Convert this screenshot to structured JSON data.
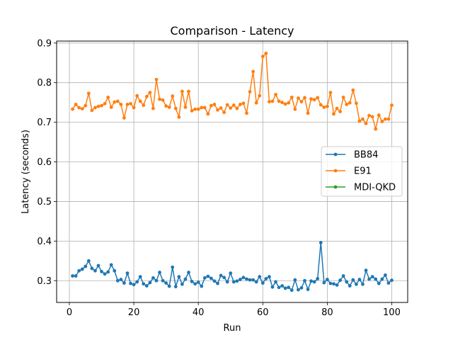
{
  "chart_data": {
    "type": "line",
    "title": "Comparison - Latency",
    "xlabel": "Run",
    "ylabel": "Latency (seconds)",
    "xlim": [
      -3.95,
      104.95
    ],
    "ylim": [
      0.245,
      0.905
    ],
    "xticks": [
      0,
      20,
      40,
      60,
      80,
      100
    ],
    "yticks": [
      0.3,
      0.4,
      0.5,
      0.6,
      0.7,
      0.8,
      0.9
    ],
    "grid": true,
    "legend_position": "center-right",
    "series": [
      {
        "name": "BB84",
        "color": "#1f77b4",
        "x": [
          1,
          2,
          3,
          4,
          5,
          6,
          7,
          8,
          9,
          10,
          11,
          12,
          13,
          14,
          15,
          16,
          17,
          18,
          19,
          20,
          21,
          22,
          23,
          24,
          25,
          26,
          27,
          28,
          29,
          30,
          31,
          32,
          33,
          34,
          35,
          36,
          37,
          38,
          39,
          40,
          41,
          42,
          43,
          44,
          45,
          46,
          47,
          48,
          49,
          50,
          51,
          52,
          53,
          54,
          55,
          56,
          57,
          58,
          59,
          60,
          61,
          62,
          63,
          64,
          65,
          66,
          67,
          68,
          69,
          70,
          71,
          72,
          73,
          74,
          75,
          76,
          77,
          78,
          79,
          80,
          81,
          82,
          83,
          84,
          85,
          86,
          87,
          88,
          89,
          90,
          91,
          92,
          93,
          94,
          95,
          96,
          97,
          98,
          99,
          100
        ],
        "y": [
          0.312,
          0.312,
          0.325,
          0.329,
          0.336,
          0.35,
          0.331,
          0.325,
          0.338,
          0.323,
          0.317,
          0.322,
          0.34,
          0.325,
          0.3,
          0.303,
          0.294,
          0.319,
          0.293,
          0.29,
          0.297,
          0.31,
          0.292,
          0.287,
          0.295,
          0.307,
          0.3,
          0.321,
          0.3,
          0.294,
          0.286,
          0.334,
          0.285,
          0.31,
          0.291,
          0.304,
          0.321,
          0.298,
          0.292,
          0.296,
          0.286,
          0.307,
          0.311,
          0.306,
          0.299,
          0.293,
          0.313,
          0.308,
          0.297,
          0.319,
          0.297,
          0.299,
          0.303,
          0.308,
          0.304,
          0.302,
          0.302,
          0.297,
          0.31,
          0.294,
          0.305,
          0.31,
          0.284,
          0.297,
          0.283,
          0.287,
          0.281,
          0.283,
          0.276,
          0.302,
          0.277,
          0.282,
          0.3,
          0.278,
          0.299,
          0.297,
          0.305,
          0.396,
          0.295,
          0.303,
          0.293,
          0.292,
          0.289,
          0.301,
          0.312,
          0.297,
          0.287,
          0.302,
          0.291,
          0.303,
          0.291,
          0.326,
          0.304,
          0.31,
          0.304,
          0.293,
          0.304,
          0.314,
          0.294,
          0.301
        ]
      },
      {
        "name": "E91",
        "color": "#ff7f0e",
        "x": [
          1,
          2,
          3,
          4,
          5,
          6,
          7,
          8,
          9,
          10,
          11,
          12,
          13,
          14,
          15,
          16,
          17,
          18,
          19,
          20,
          21,
          22,
          23,
          24,
          25,
          26,
          27,
          28,
          29,
          30,
          31,
          32,
          33,
          34,
          35,
          36,
          37,
          38,
          39,
          40,
          41,
          42,
          43,
          44,
          45,
          46,
          47,
          48,
          49,
          50,
          51,
          52,
          53,
          54,
          55,
          56,
          57,
          58,
          59,
          60,
          61,
          62,
          63,
          64,
          65,
          66,
          67,
          68,
          69,
          70,
          71,
          72,
          73,
          74,
          75,
          76,
          77,
          78,
          79,
          80,
          81,
          82,
          83,
          84,
          85,
          86,
          87,
          88,
          89,
          90,
          91,
          92,
          93,
          94,
          95,
          96,
          97,
          98,
          99,
          100
        ],
        "y": [
          0.733,
          0.745,
          0.737,
          0.734,
          0.742,
          0.773,
          0.73,
          0.737,
          0.74,
          0.742,
          0.747,
          0.763,
          0.738,
          0.751,
          0.753,
          0.745,
          0.711,
          0.745,
          0.747,
          0.737,
          0.767,
          0.753,
          0.743,
          0.765,
          0.775,
          0.735,
          0.808,
          0.758,
          0.756,
          0.741,
          0.738,
          0.766,
          0.735,
          0.713,
          0.778,
          0.738,
          0.778,
          0.729,
          0.733,
          0.733,
          0.737,
          0.737,
          0.721,
          0.742,
          0.745,
          0.731,
          0.736,
          0.725,
          0.744,
          0.736,
          0.743,
          0.735,
          0.745,
          0.748,
          0.723,
          0.777,
          0.828,
          0.749,
          0.767,
          0.866,
          0.874,
          0.752,
          0.753,
          0.77,
          0.753,
          0.75,
          0.746,
          0.749,
          0.763,
          0.733,
          0.761,
          0.752,
          0.762,
          0.723,
          0.759,
          0.757,
          0.762,
          0.744,
          0.738,
          0.74,
          0.775,
          0.721,
          0.735,
          0.727,
          0.763,
          0.745,
          0.749,
          0.781,
          0.748,
          0.703,
          0.708,
          0.697,
          0.717,
          0.714,
          0.683,
          0.718,
          0.702,
          0.708,
          0.708,
          0.743
        ]
      },
      {
        "name": "MDI-QKD",
        "color": "#2ca02c",
        "x": [],
        "y": []
      }
    ]
  }
}
